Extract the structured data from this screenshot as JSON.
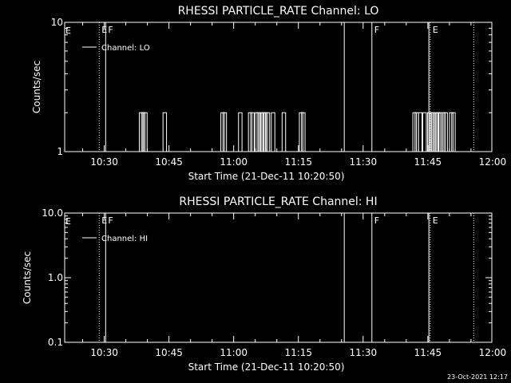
{
  "footer": {
    "timestamp": "23-Oct-2021 12:17"
  },
  "chart_data": [
    {
      "type": "line",
      "title": "RHESSI PARTICLE_RATE Channel: LO",
      "xlabel": "Start Time (21-Dec-11 10:20:50)",
      "ylabel": "Counts/sec",
      "yscale": "log",
      "ylim": [
        1,
        10
      ],
      "xlim_minutes_from_start": [
        0,
        99
      ],
      "x_ticks": [
        {
          "m": 9.17,
          "label": "10:30"
        },
        {
          "m": 24.17,
          "label": "10:45"
        },
        {
          "m": 39.17,
          "label": "11:00"
        },
        {
          "m": 54.17,
          "label": "11:15"
        },
        {
          "m": 69.17,
          "label": "11:30"
        },
        {
          "m": 84.17,
          "label": "11:45"
        },
        {
          "m": 99.17,
          "label": "12:00"
        }
      ],
      "y_ticks": [
        {
          "v": 1,
          "label": "1"
        },
        {
          "v": 10,
          "label": "10"
        }
      ],
      "legend": {
        "position": "top-left",
        "entries": [
          "Channel: LO"
        ]
      },
      "series": [
        {
          "name": "Channel: LO",
          "spikes": [
            {
              "m": 17.7,
              "v": 2
            },
            {
              "m": 18.2,
              "v": 2
            },
            {
              "m": 18.7,
              "v": 2
            },
            {
              "m": 23.2,
              "v": 2
            },
            {
              "m": 36.6,
              "v": 2
            },
            {
              "m": 37.1,
              "v": 2
            },
            {
              "m": 40.7,
              "v": 2
            },
            {
              "m": 43.0,
              "v": 2
            },
            {
              "m": 43.5,
              "v": 2
            },
            {
              "m": 44.5,
              "v": 2
            },
            {
              "m": 45.0,
              "v": 2
            },
            {
              "m": 45.6,
              "v": 2
            },
            {
              "m": 46.1,
              "v": 2
            },
            {
              "m": 46.6,
              "v": 2
            },
            {
              "m": 47.1,
              "v": 2
            },
            {
              "m": 48.3,
              "v": 2
            },
            {
              "m": 50.8,
              "v": 2
            },
            {
              "m": 54.8,
              "v": 2
            },
            {
              "m": 55.3,
              "v": 2
            },
            {
              "m": 81.1,
              "v": 2
            },
            {
              "m": 81.6,
              "v": 2
            },
            {
              "m": 82.4,
              "v": 2
            },
            {
              "m": 83.4,
              "v": 2
            },
            {
              "m": 84.5,
              "v": 2
            },
            {
              "m": 85.0,
              "v": 2
            },
            {
              "m": 85.5,
              "v": 2
            },
            {
              "m": 86.1,
              "v": 2
            },
            {
              "m": 86.6,
              "v": 2
            },
            {
              "m": 87.1,
              "v": 2
            },
            {
              "m": 87.8,
              "v": 2
            },
            {
              "m": 88.3,
              "v": 2
            },
            {
              "m": 89.6,
              "v": 2
            },
            {
              "m": 90.1,
              "v": 2
            }
          ]
        }
      ],
      "markers": [
        {
          "m": 8.0,
          "style": "dotted",
          "label": "E"
        },
        {
          "m": 9.5,
          "style": "solid",
          "label": "F"
        },
        {
          "m": 64.8,
          "style": "solid",
          "label": ""
        },
        {
          "m": 71.2,
          "style": "solid",
          "label": "F"
        },
        {
          "m": 84.4,
          "style": "solid",
          "label": ""
        },
        {
          "m": 84.7,
          "style": "dotted",
          "label": "E"
        },
        {
          "m": 94.8,
          "style": "dotted",
          "label": ""
        }
      ],
      "corner_label": "E"
    },
    {
      "type": "line",
      "title": "RHESSI PARTICLE_RATE Channel: HI",
      "xlabel": "Start Time (21-Dec-11 10:20:50)",
      "ylabel": "Counts/sec",
      "yscale": "log",
      "ylim": [
        0.1,
        10
      ],
      "xlim_minutes_from_start": [
        0,
        99
      ],
      "x_ticks": [
        {
          "m": 9.17,
          "label": "10:30"
        },
        {
          "m": 24.17,
          "label": "10:45"
        },
        {
          "m": 39.17,
          "label": "11:00"
        },
        {
          "m": 54.17,
          "label": "11:15"
        },
        {
          "m": 69.17,
          "label": "11:30"
        },
        {
          "m": 84.17,
          "label": "11:45"
        },
        {
          "m": 99.17,
          "label": "12:00"
        }
      ],
      "y_ticks": [
        {
          "v": 0.1,
          "label": "0.1"
        },
        {
          "v": 1,
          "label": "1.0"
        },
        {
          "v": 10,
          "label": "10.0"
        }
      ],
      "legend": {
        "position": "top-left",
        "entries": [
          "Channel: HI"
        ]
      },
      "series": [
        {
          "name": "Channel: HI",
          "spikes": []
        }
      ],
      "markers": [
        {
          "m": 8.0,
          "style": "dotted",
          "label": "E"
        },
        {
          "m": 9.5,
          "style": "solid",
          "label": "F"
        },
        {
          "m": 64.8,
          "style": "solid",
          "label": ""
        },
        {
          "m": 71.2,
          "style": "solid",
          "label": "F"
        },
        {
          "m": 84.4,
          "style": "solid",
          "label": ""
        },
        {
          "m": 84.7,
          "style": "dotted",
          "label": "E"
        },
        {
          "m": 94.8,
          "style": "dotted",
          "label": ""
        }
      ],
      "corner_label": "E"
    }
  ]
}
